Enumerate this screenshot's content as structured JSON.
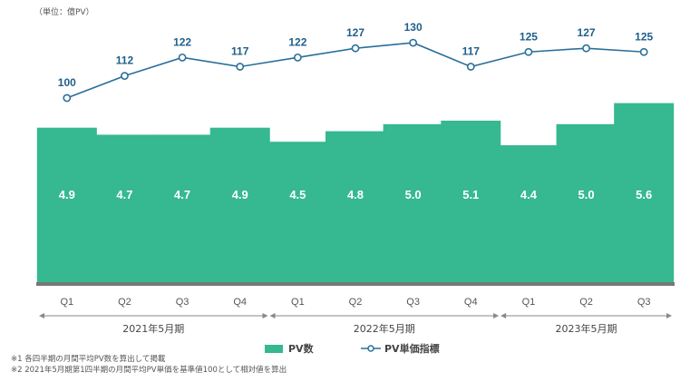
{
  "unit_label": "（単位：億PV）",
  "colors": {
    "bar": "#36b891",
    "line": "#2a6f9a",
    "axis": "#777777",
    "label": "#1f5f8a"
  },
  "chart_data": {
    "type": "bar",
    "categories": [
      "Q1",
      "Q2",
      "Q3",
      "Q4",
      "Q1",
      "Q2",
      "Q3",
      "Q4",
      "Q1",
      "Q2",
      "Q3"
    ],
    "series": [
      {
        "name": "PV数",
        "type": "bar",
        "values": [
          4.9,
          4.7,
          4.7,
          4.9,
          4.5,
          4.8,
          5.0,
          5.1,
          4.4,
          5.0,
          5.6
        ],
        "labels": [
          "4.9",
          "4.7",
          "4.7",
          "4.9",
          "4.5",
          "4.8",
          "5.0",
          "5.1",
          "4.4",
          "5.0",
          "5.6"
        ]
      },
      {
        "name": "PV単価指標",
        "type": "line",
        "values": [
          100,
          112,
          122,
          117,
          122,
          127,
          130,
          117,
          125,
          127,
          125
        ],
        "labels": [
          "100",
          "112",
          "122",
          "117",
          "122",
          "127",
          "130",
          "117",
          "125",
          "127",
          "125"
        ]
      }
    ],
    "periods": [
      {
        "label": "2021年5月期",
        "first": 0,
        "last": 3
      },
      {
        "label": "2022年5月期",
        "first": 4,
        "last": 7
      },
      {
        "label": "2023年5月期",
        "first": 8,
        "last": 10
      }
    ],
    "legend_position": "bottom"
  },
  "legend": {
    "bar_label": "PV数",
    "line_label": "PV単価指標"
  },
  "notes": [
    "※1 各四半期の月間平均PV数を算出して掲載",
    "※2 2021年5月期第1四半期の月間平均PV単価を基準値100として相対値を算出"
  ]
}
